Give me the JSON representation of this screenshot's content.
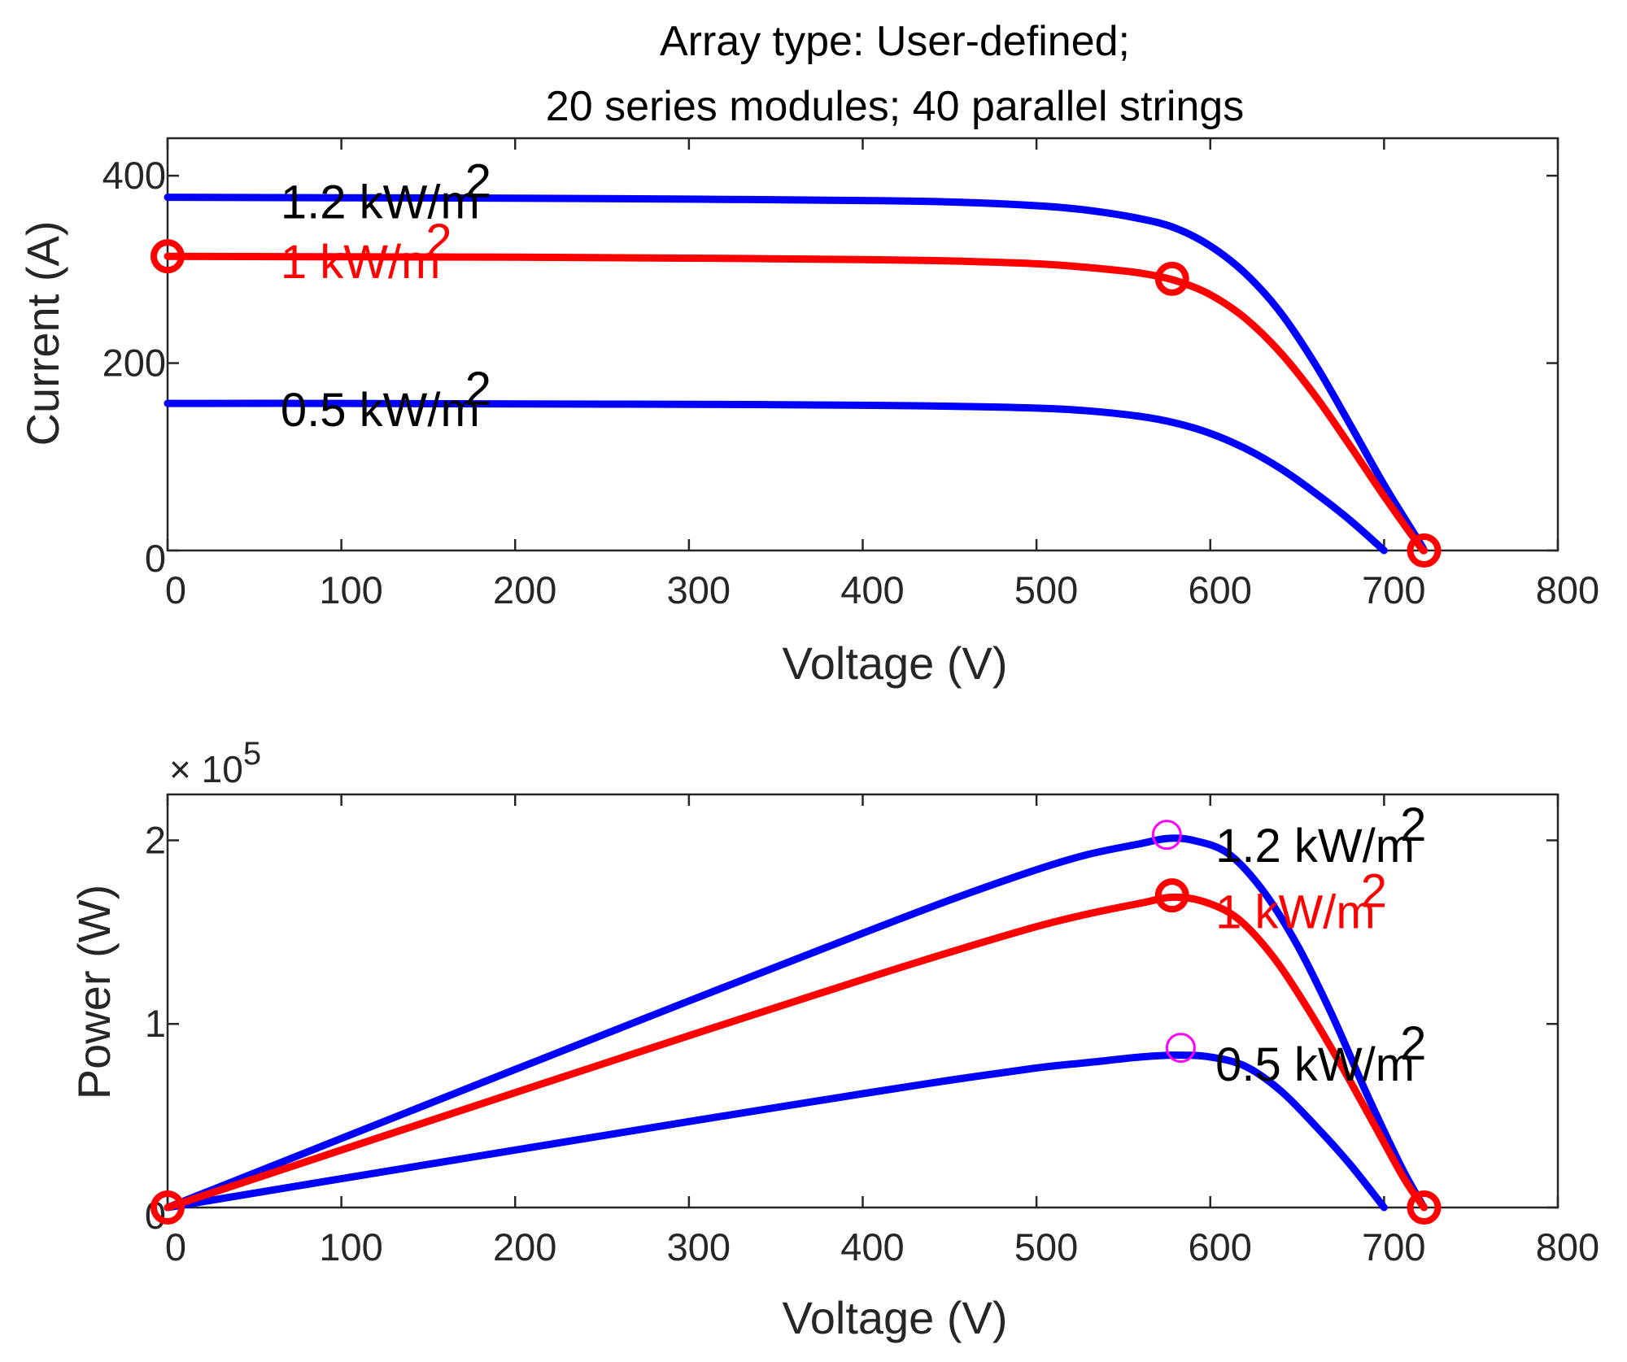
{
  "chart_data": [
    {
      "type": "line",
      "title": [
        "Array type: User-defined;",
        "20 series modules; 40 parallel strings"
      ],
      "xlabel": "Voltage (V)",
      "ylabel": "Current (A)",
      "xlim": [
        0,
        800
      ],
      "ylim": [
        0,
        440
      ],
      "xticks": [
        "0",
        "100",
        "200",
        "300",
        "400",
        "500",
        "600",
        "700",
        "800"
      ],
      "yticks": [
        "0",
        "200",
        "400"
      ],
      "yticks_values": [
        0,
        200,
        400
      ],
      "series": [
        {
          "name": "1.2 kW/m2",
          "color": "#0000ff",
          "x": [
            0,
            100,
            200,
            300,
            400,
            450,
            500,
            530,
            560,
            580,
            600,
            620,
            640,
            660,
            680,
            700,
            720,
            723
          ],
          "y": [
            377,
            376.5,
            376,
            375,
            373.5,
            372,
            368,
            363,
            354,
            344,
            325,
            296,
            255,
            200,
            136,
            70,
            10,
            0
          ]
        },
        {
          "name": "1 kW/m2",
          "color": "#ff0000",
          "x": [
            0,
            100,
            200,
            300,
            400,
            450,
            500,
            530,
            560,
            580,
            600,
            620,
            640,
            660,
            680,
            700,
            720,
            723
          ],
          "y": [
            314,
            313.5,
            313,
            312,
            310.5,
            309,
            306,
            302,
            296,
            288,
            273,
            248,
            212,
            166,
            113,
            58,
            6,
            0
          ]
        },
        {
          "name": "0.5 kW/m2",
          "color": "#0000ff",
          "x": [
            0,
            100,
            200,
            300,
            400,
            450,
            500,
            530,
            560,
            580,
            600,
            620,
            640,
            660,
            680,
            700
          ],
          "y": [
            157,
            157,
            156.5,
            156,
            155,
            154,
            152,
            149,
            143,
            136,
            125,
            109,
            88,
            62,
            33,
            0
          ]
        }
      ],
      "markers": [
        {
          "x": 0,
          "y": 314,
          "color": "#ff0000"
        },
        {
          "x": 578,
          "y": 290,
          "color": "#ff0000"
        },
        {
          "x": 723,
          "y": 0,
          "color": "#ff0000"
        }
      ],
      "annotations": [
        {
          "text": "1.2 kW/m",
          "sup": "2",
          "color": "#000000",
          "x": 65,
          "y": 372
        },
        {
          "text": "1 kW/m",
          "sup": "2",
          "color": "#ff0000",
          "x": 65,
          "y": 308
        },
        {
          "text": "0.5 kW/m",
          "sup": "2",
          "color": "#000000",
          "x": 65,
          "y": 150
        }
      ]
    },
    {
      "type": "line",
      "xlabel": "Voltage (V)",
      "ylabel": "Power (W)",
      "multiplier": "× 10",
      "multiplier_exp": "5",
      "xlim": [
        0,
        800
      ],
      "ylim": [
        0,
        2.25
      ],
      "xticks": [
        "0",
        "100",
        "200",
        "300",
        "400",
        "500",
        "600",
        "700",
        "800"
      ],
      "yticks": [
        "0",
        "1",
        "2"
      ],
      "yticks_values": [
        0,
        1,
        2
      ],
      "series": [
        {
          "name": "1.2 kW/m2",
          "color": "#0000ff",
          "x": [
            0,
            100,
            200,
            300,
            400,
            450,
            500,
            530,
            560,
            575,
            590,
            610,
            630,
            650,
            670,
            690,
            710,
            723
          ],
          "y": [
            0,
            0.376,
            0.752,
            1.125,
            1.494,
            1.674,
            1.84,
            1.924,
            1.982,
            2.01,
            2.0,
            1.93,
            1.73,
            1.43,
            1.05,
            0.62,
            0.22,
            0
          ]
        },
        {
          "name": "1 kW/m2",
          "color": "#ff0000",
          "x": [
            0,
            100,
            200,
            300,
            400,
            450,
            500,
            530,
            560,
            578,
            595,
            615,
            635,
            655,
            675,
            695,
            712,
            723
          ],
          "y": [
            0,
            0.313,
            0.626,
            0.936,
            1.242,
            1.39,
            1.53,
            1.6,
            1.658,
            1.69,
            1.67,
            1.58,
            1.38,
            1.1,
            0.78,
            0.44,
            0.15,
            0
          ]
        },
        {
          "name": "0.5 kW/m2",
          "color": "#0000ff",
          "x": [
            0,
            100,
            200,
            300,
            400,
            450,
            500,
            530,
            560,
            580,
            600,
            620,
            640,
            660,
            680,
            700
          ],
          "y": [
            0,
            0.157,
            0.313,
            0.468,
            0.62,
            0.693,
            0.76,
            0.79,
            0.82,
            0.83,
            0.82,
            0.77,
            0.64,
            0.45,
            0.24,
            0
          ]
        }
      ],
      "markers": [
        {
          "x": 0,
          "y": 0,
          "color": "#ff0000"
        },
        {
          "x": 578,
          "y": 1.7,
          "color": "#ff0000"
        },
        {
          "x": 723,
          "y": 0,
          "color": "#ff0000"
        }
      ],
      "mpp_markers": [
        {
          "x": 575,
          "y": 2.03,
          "color": "#ff00ff"
        },
        {
          "x": 583,
          "y": 0.87,
          "color": "#ff00ff"
        }
      ],
      "annotations": [
        {
          "text": "1.2 kW/m",
          "sup": "2",
          "color": "#000000",
          "x": 603,
          "y": 1.97
        },
        {
          "text": "1 kW/m",
          "sup": "2",
          "color": "#ff0000",
          "x": 603,
          "y": 1.61
        },
        {
          "text": "0.5 kW/m",
          "sup": "2",
          "color": "#000000",
          "x": 603,
          "y": 0.78
        }
      ]
    }
  ]
}
